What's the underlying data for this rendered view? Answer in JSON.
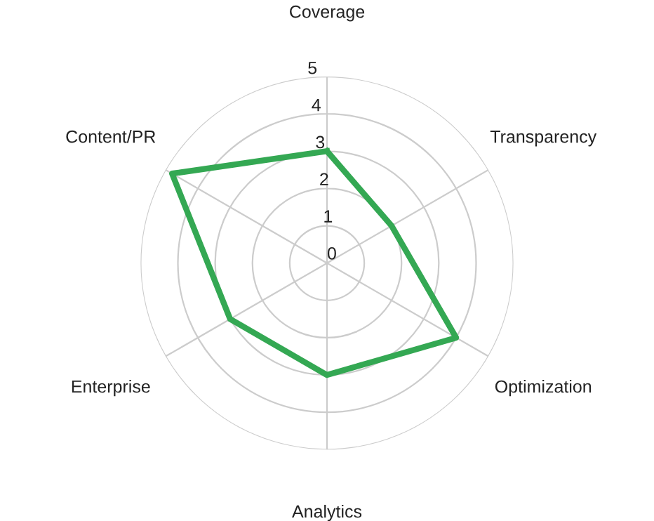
{
  "chart_data": {
    "type": "radar",
    "categories": [
      "Coverage",
      "Transparency",
      "Optimization",
      "Analytics",
      "Enterprise",
      "Content/PR"
    ],
    "series": [
      {
        "color": "#34a853",
        "values": [
          3,
          2,
          4,
          3,
          3,
          4.8
        ]
      }
    ],
    "ylim": [
      0,
      5
    ],
    "yticks": [
      0,
      1,
      2,
      3,
      4,
      5
    ],
    "grid": true,
    "marker": "none",
    "line_style": "solid"
  }
}
